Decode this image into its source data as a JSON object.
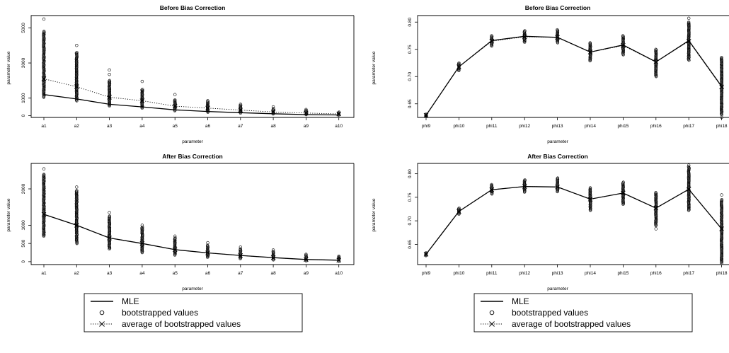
{
  "chart_data": [
    {
      "type": "line",
      "title": "Before Bias Correction",
      "xlabel": "parameter",
      "ylabel": "parameter value",
      "categories": [
        "a1",
        "a2",
        "a3",
        "a4",
        "a5",
        "a6",
        "a7",
        "a8",
        "a9",
        "a10"
      ],
      "ylim": [
        -100,
        5700
      ],
      "yticks": [
        0,
        1000,
        3000,
        5000
      ],
      "series": [
        {
          "name": "MLE",
          "style": "solid",
          "values": [
            1200,
            950,
            650,
            500,
            330,
            240,
            170,
            110,
            60,
            40
          ]
        },
        {
          "name": "average of bootstrapped values",
          "style": "dotted",
          "values": [
            2100,
            1650,
            1050,
            850,
            540,
            430,
            320,
            210,
            150,
            100
          ]
        }
      ],
      "bootstrap_ranges": [
        [
          1050,
          4800
        ],
        [
          850,
          3600
        ],
        [
          550,
          2000
        ],
        [
          430,
          1500
        ],
        [
          280,
          900
        ],
        [
          200,
          800
        ],
        [
          150,
          600
        ],
        [
          100,
          400
        ],
        [
          60,
          300
        ],
        [
          30,
          200
        ]
      ],
      "bootstrap_outliers": [
        [
          5500
        ],
        [
          4000
        ],
        [
          2600,
          2350
        ],
        [
          1950
        ],
        [
          1200
        ],
        [
          850
        ],
        [
          650
        ],
        [
          500
        ],
        [
          350
        ],
        []
      ]
    },
    {
      "type": "line",
      "title": "Before Bias Correction",
      "xlabel": "parameter",
      "ylabel": "parameter value",
      "categories": [
        "phi9",
        "phi10",
        "phi11",
        "phi12",
        "phi13",
        "phi14",
        "phi15",
        "phi16",
        "phi17",
        "phi18"
      ],
      "ylim": [
        0.625,
        0.812
      ],
      "yticks": [
        0.65,
        0.7,
        0.75,
        0.8
      ],
      "series": [
        {
          "name": "MLE",
          "style": "solid",
          "values": [
            0.629,
            0.718,
            0.766,
            0.774,
            0.772,
            0.745,
            0.758,
            0.727,
            0.766,
            0.682
          ]
        },
        {
          "name": "average of bootstrapped values",
          "style": "dotted",
          "values": [
            0.629,
            0.718,
            0.765,
            0.773,
            0.772,
            0.745,
            0.757,
            0.727,
            0.765,
            0.681
          ]
        }
      ],
      "bootstrap_ranges": [
        [
          0.627,
          0.631
        ],
        [
          0.711,
          0.725
        ],
        [
          0.756,
          0.775
        ],
        [
          0.763,
          0.784
        ],
        [
          0.762,
          0.786
        ],
        [
          0.729,
          0.762
        ],
        [
          0.74,
          0.775
        ],
        [
          0.7,
          0.75
        ],
        [
          0.73,
          0.8
        ],
        [
          0.63,
          0.735
        ]
      ],
      "bootstrap_outliers": [
        [],
        [],
        [],
        [],
        [],
        [],
        [],
        [],
        [
          0.807
        ],
        [
          0.625
        ]
      ]
    },
    {
      "type": "line",
      "title": "After Bias Correction",
      "xlabel": "parameter",
      "ylabel": "parameter value",
      "categories": [
        "a1",
        "a2",
        "a3",
        "a4",
        "a5",
        "a6",
        "a7",
        "a8",
        "a9",
        "a10"
      ],
      "ylim": [
        -80,
        2700
      ],
      "yticks": [
        0,
        500,
        1000,
        2000
      ],
      "series": [
        {
          "name": "MLE",
          "style": "solid",
          "values": [
            1300,
            1000,
            650,
            500,
            330,
            240,
            170,
            110,
            60,
            40
          ]
        },
        {
          "name": "average of bootstrapped values",
          "style": "dotted",
          "values": [
            1300,
            1000,
            650,
            500,
            330,
            240,
            170,
            110,
            60,
            40
          ]
        }
      ],
      "bootstrap_ranges": [
        [
          700,
          2400
        ],
        [
          500,
          1950
        ],
        [
          350,
          1250
        ],
        [
          250,
          950
        ],
        [
          180,
          650
        ],
        [
          120,
          450
        ],
        [
          80,
          350
        ],
        [
          50,
          280
        ],
        [
          20,
          180
        ],
        [
          10,
          130
        ]
      ],
      "bootstrap_outliers": [
        [
          2550
        ],
        [
          2050
        ],
        [
          1350
        ],
        [
          1000
        ],
        [
          700
        ],
        [
          520
        ],
        [
          400
        ],
        [
          320
        ],
        [
          200
        ],
        [
          150
        ]
      ]
    },
    {
      "type": "line",
      "title": "After Bias Correction",
      "xlabel": "parameter",
      "ylabel": "parameter value",
      "categories": [
        "phi9",
        "phi10",
        "phi11",
        "phi12",
        "phi13",
        "phi14",
        "phi15",
        "phi16",
        "phi17",
        "phi18"
      ],
      "ylim": [
        0.607,
        0.822
      ],
      "yticks": [
        0.65,
        0.7,
        0.75,
        0.8
      ],
      "series": [
        {
          "name": "MLE",
          "style": "solid",
          "values": [
            0.629,
            0.72,
            0.766,
            0.773,
            0.772,
            0.746,
            0.759,
            0.727,
            0.767,
            0.683
          ]
        },
        {
          "name": "average of bootstrapped values",
          "style": "dotted",
          "values": [
            0.629,
            0.72,
            0.766,
            0.773,
            0.772,
            0.746,
            0.759,
            0.727,
            0.767,
            0.683
          ]
        }
      ],
      "bootstrap_ranges": [
        [
          0.626,
          0.632
        ],
        [
          0.714,
          0.727
        ],
        [
          0.757,
          0.777
        ],
        [
          0.761,
          0.787
        ],
        [
          0.762,
          0.791
        ],
        [
          0.722,
          0.768
        ],
        [
          0.735,
          0.782
        ],
        [
          0.69,
          0.76
        ],
        [
          0.722,
          0.815
        ],
        [
          0.612,
          0.745
        ]
      ],
      "bootstrap_outliers": [
        [],
        [],
        [],
        [],
        [],
        [
          0.77
        ],
        [],
        [
          0.683
        ],
        [
          0.818
        ],
        [
          0.755,
          0.61
        ]
      ]
    }
  ],
  "legend": {
    "items": [
      {
        "symbol": "line",
        "label": "MLE"
      },
      {
        "symbol": "o",
        "label": "bootstrapped values"
      },
      {
        "symbol": "dotted-x",
        "label": "average of bootstrapped values"
      }
    ]
  }
}
